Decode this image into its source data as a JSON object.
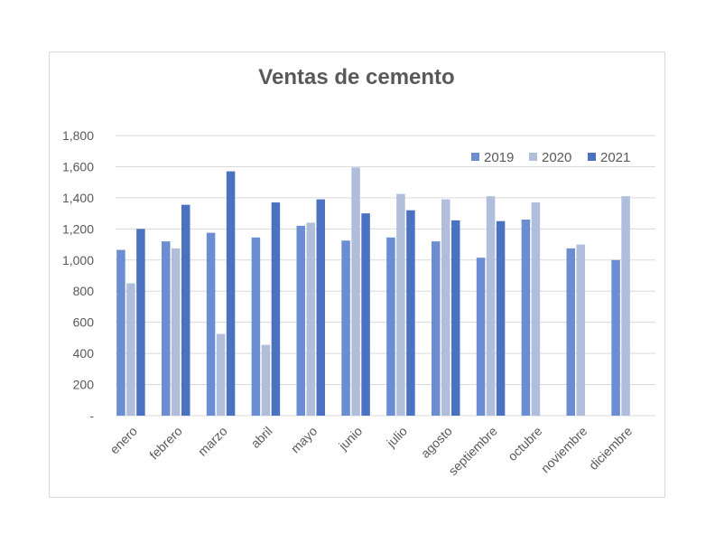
{
  "chart_data": {
    "type": "bar",
    "title": "Ventas de cemento",
    "xlabel": "",
    "ylabel": "",
    "ylim": [
      0,
      1800
    ],
    "yticks": [
      {
        "value": 0,
        "label": "-"
      },
      {
        "value": 200,
        "label": "200"
      },
      {
        "value": 400,
        "label": "400"
      },
      {
        "value": 600,
        "label": "600"
      },
      {
        "value": 800,
        "label": "800"
      },
      {
        "value": 1000,
        "label": "1,000"
      },
      {
        "value": 1200,
        "label": "1,200"
      },
      {
        "value": 1400,
        "label": "1,400"
      },
      {
        "value": 1600,
        "label": "1,600"
      },
      {
        "value": 1800,
        "label": "1,800"
      }
    ],
    "grid": true,
    "legend_position": "top-right",
    "categories": [
      "enero",
      "febrero",
      "marzo",
      "abril",
      "mayo",
      "junio",
      "julio",
      "agosto",
      "septiembre",
      "octubre",
      "noviembre",
      "diciembre"
    ],
    "series": [
      {
        "name": "2019",
        "color": "#6b8ed2",
        "values": [
          1065,
          1120,
          1175,
          1145,
          1220,
          1125,
          1145,
          1120,
          1015,
          1260,
          1075,
          1000
        ]
      },
      {
        "name": "2020",
        "color": "#b0bedb",
        "values": [
          850,
          1075,
          525,
          455,
          1240,
          1595,
          1425,
          1390,
          1410,
          1370,
          1100,
          1410
        ]
      },
      {
        "name": "2021",
        "color": "#4a72c0",
        "values": [
          1200,
          1355,
          1570,
          1370,
          1390,
          1300,
          1320,
          1255,
          1250,
          null,
          null,
          null
        ]
      }
    ]
  }
}
